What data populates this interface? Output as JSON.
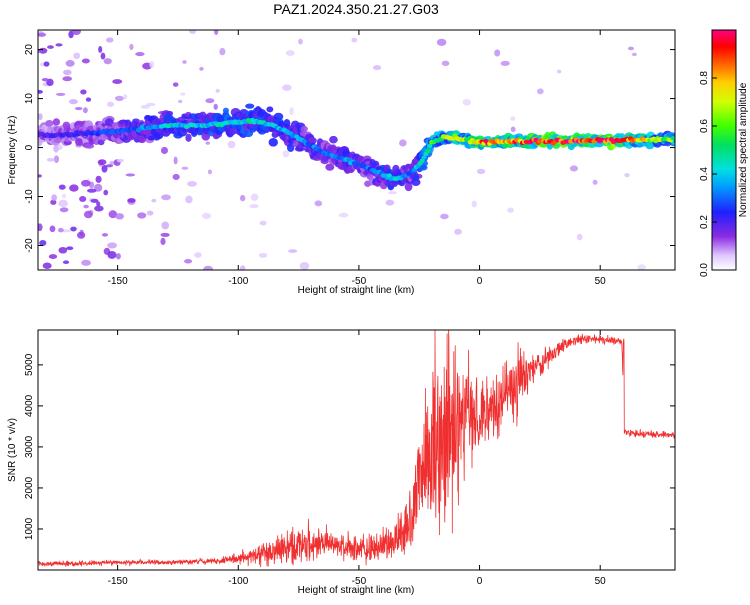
{
  "title": "PAZ1.2024.350.21.27.G03",
  "chart_data": [
    {
      "type": "heatmap",
      "xlabel": "Height of straight line (km)",
      "ylabel": "Frequency (Hz)",
      "xlim": [
        -183,
        81
      ],
      "ylim": [
        -25,
        24
      ],
      "xticks": [
        -150,
        -100,
        -50,
        0,
        50
      ],
      "yticks": [
        -20,
        -10,
        0,
        10,
        20
      ],
      "colorbar": {
        "label": "Normalized spectral amplitude",
        "range": [
          0,
          1
        ],
        "ticks": [
          0.0,
          0.2,
          0.4,
          0.6,
          0.8
        ],
        "tick_labels": [
          "0.0",
          "0.2",
          "0.4",
          "0.6",
          "0.8"
        ]
      },
      "ridge": {
        "x": [
          -175,
          -160,
          -145,
          -130,
          -115,
          -105,
          -95,
          -85,
          -75,
          -65,
          -55,
          -45,
          -38,
          -33,
          -28,
          -24,
          -20,
          -15,
          -10,
          -5,
          0,
          10,
          20,
          30,
          40,
          50,
          60,
          70,
          80
        ],
        "y": [
          2.5,
          3.0,
          3.5,
          4.5,
          4.5,
          5.0,
          5.5,
          4.5,
          2.0,
          -1.0,
          -2.5,
          -4.5,
          -6.0,
          -6.5,
          -5.0,
          -3.0,
          1.0,
          2.0,
          2.0,
          1.5,
          1.0,
          1.2,
          1.3,
          1.3,
          1.4,
          1.4,
          1.5,
          1.6,
          1.8
        ],
        "amplitude": [
          0.2,
          0.25,
          0.3,
          0.4,
          0.4,
          0.45,
          0.45,
          0.4,
          0.35,
          0.3,
          0.35,
          0.3,
          0.4,
          0.4,
          0.3,
          0.45,
          0.55,
          0.6,
          0.75,
          0.65,
          0.9,
          0.8,
          0.9,
          0.95,
          1.0,
          1.0,
          0.95,
          0.7,
          0.6
        ]
      }
    },
    {
      "type": "line",
      "xlabel": "Height of straight line (km)",
      "ylabel": "SNR (10 * v/v)",
      "xlim": [
        -183,
        81
      ],
      "ylim": [
        0,
        5850
      ],
      "xticks": [
        -150,
        -100,
        -50,
        0,
        50
      ],
      "yticks": [
        1000,
        2000,
        3000,
        4000,
        5000
      ],
      "color": "#f03030",
      "series": [
        {
          "x": [
            -183,
            -170,
            -160,
            -150,
            -140,
            -130,
            -120,
            -110,
            -105,
            -100,
            -95,
            -90,
            -85,
            -80,
            -75,
            -70,
            -65,
            -60,
            -55,
            -50,
            -45,
            -40,
            -35,
            -30,
            -28,
            -25,
            -22,
            -20,
            -18,
            -16,
            -14,
            -12,
            -10,
            -8,
            -5,
            0,
            5,
            10,
            15,
            20,
            25,
            30,
            35,
            40,
            45,
            50,
            55,
            59,
            60,
            61,
            65,
            70,
            75,
            81
          ],
          "y": [
            150,
            160,
            170,
            180,
            180,
            190,
            200,
            220,
            240,
            280,
            330,
            400,
            480,
            560,
            600,
            620,
            640,
            620,
            560,
            500,
            520,
            580,
            700,
            1000,
            1400,
            2200,
            2800,
            3000,
            3200,
            3400,
            3300,
            3000,
            3300,
            3500,
            3700,
            3600,
            3900,
            4200,
            4500,
            4800,
            5000,
            5300,
            5500,
            5600,
            5650,
            5620,
            5600,
            5550,
            3400,
            3350,
            3330,
            3300,
            3300,
            3300
          ],
          "noise": [
            60,
            60,
            60,
            60,
            60,
            60,
            70,
            80,
            90,
            120,
            180,
            250,
            350,
            450,
            450,
            420,
            400,
            350,
            300,
            300,
            350,
            400,
            500,
            800,
            1200,
            1500,
            1800,
            2000,
            2000,
            2200,
            2000,
            1800,
            1500,
            1400,
            1200,
            1000,
            900,
            800,
            700,
            500,
            350,
            250,
            150,
            120,
            100,
            100,
            100,
            100,
            80,
            80,
            80,
            80,
            80,
            80
          ]
        }
      ]
    }
  ]
}
